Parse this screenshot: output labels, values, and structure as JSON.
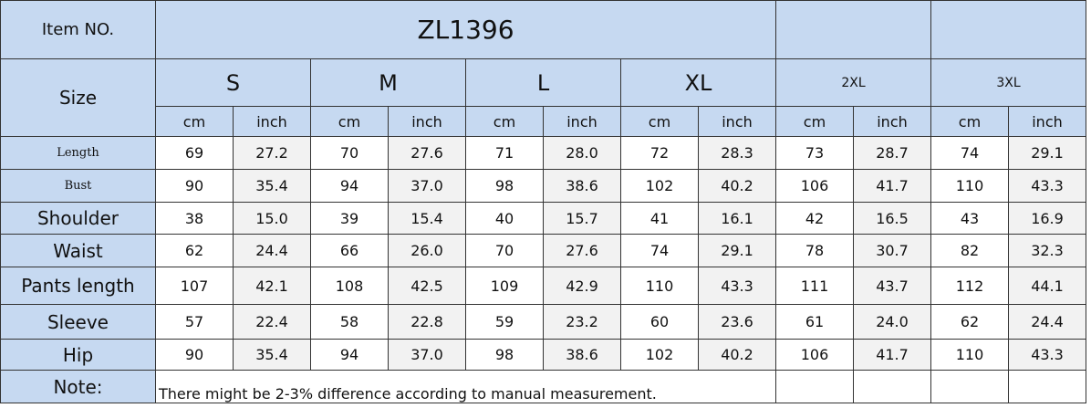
{
  "header": {
    "item_label": "Item NO.",
    "item": "ZL1396",
    "size_label": "Size",
    "sizes": [
      "S",
      "M",
      "L",
      "XL",
      "2XL",
      "3XL"
    ],
    "units": [
      "cm",
      "inch"
    ]
  },
  "table": {
    "rows": [
      [
        "Length",
        "69",
        "27.2",
        "70",
        "27.6",
        "71",
        "28.0",
        "72",
        "28.3",
        "73",
        "28.7",
        "74",
        "29.1"
      ],
      [
        "Bust",
        "90",
        "35.4",
        "94",
        "37.0",
        "98",
        "38.6",
        "102",
        "40.2",
        "106",
        "41.7",
        "110",
        "43.3"
      ],
      [
        "Shoulder",
        "38",
        "15.0",
        "39",
        "15.4",
        "40",
        "15.7",
        "41",
        "16.1",
        "42",
        "16.5",
        "43",
        "16.9"
      ],
      [
        "Waist",
        "62",
        "24.4",
        "66",
        "26.0",
        "70",
        "27.6",
        "74",
        "29.1",
        "78",
        "30.7",
        "82",
        "32.3"
      ],
      [
        "Pants length",
        "107",
        "42.1",
        "108",
        "42.5",
        "109",
        "42.9",
        "110",
        "43.3",
        "111",
        "43.7",
        "112",
        "44.1"
      ],
      [
        "Sleeve",
        "57",
        "22.4",
        "58",
        "22.8",
        "59",
        "23.2",
        "60",
        "23.6",
        "61",
        "24.0",
        "62",
        "24.4"
      ],
      [
        "Hip",
        "90",
        "35.4",
        "94",
        "37.0",
        "98",
        "38.6",
        "102",
        "40.2",
        "106",
        "41.7",
        "110",
        "43.3"
      ]
    ]
  },
  "note": {
    "label": "Note:",
    "text": "There might be 2-3% difference according to manual measurement."
  }
}
